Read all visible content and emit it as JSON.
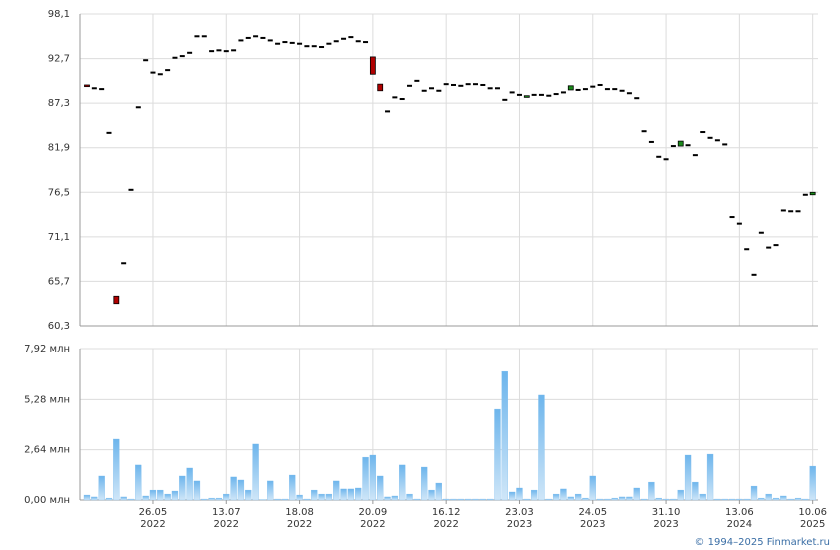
{
  "chart_data": [
    {
      "type": "candlestick",
      "ylim": [
        60.3,
        98.1
      ],
      "yticks": [
        {
          "value": 60.3,
          "label": "60,3"
        },
        {
          "value": 65.7,
          "label": "65,7"
        },
        {
          "value": 71.1,
          "label": "71,1"
        },
        {
          "value": 76.5,
          "label": "76,5"
        },
        {
          "value": 81.9,
          "label": "81,9"
        },
        {
          "value": 87.3,
          "label": "87,3"
        },
        {
          "value": 92.7,
          "label": "92,7"
        },
        {
          "value": 98.1,
          "label": "98,1"
        }
      ],
      "grid": true,
      "up_color": "#1a8a1a",
      "down_color": "#b00000",
      "flat_color": "#000000",
      "open": [
        89.5,
        89.1,
        89.0,
        83.7,
        63.9,
        67.9,
        76.8,
        86.8,
        92.5,
        91.0,
        90.8,
        91.3,
        92.8,
        93.0,
        93.4,
        95.4,
        95.4,
        93.6,
        93.7,
        93.6,
        93.7,
        94.9,
        95.2,
        95.4,
        95.2,
        94.9,
        94.5,
        94.7,
        94.6,
        94.5,
        94.2,
        94.2,
        94.1,
        94.5,
        94.8,
        95.1,
        95.3,
        94.8,
        94.7,
        92.9,
        89.6,
        86.3,
        88.0,
        87.8,
        89.4,
        90.0,
        88.8,
        89.1,
        88.8,
        89.6,
        89.5,
        89.4,
        89.6,
        89.6,
        89.5,
        89.1,
        89.1,
        87.7,
        88.6,
        88.3,
        88.0,
        88.3,
        88.3,
        88.2,
        88.4,
        88.6,
        88.9,
        88.9,
        89.0,
        89.3,
        89.5,
        89.0,
        89.0,
        88.8,
        88.5,
        87.9,
        83.9,
        82.6,
        80.8,
        80.5,
        82.1,
        82.1,
        82.2,
        81.0,
        83.8,
        83.1,
        82.8,
        82.3,
        73.5,
        72.7,
        69.6,
        66.5,
        71.6,
        69.8,
        70.1,
        74.3,
        74.2,
        74.2,
        76.2,
        76.2
      ],
      "close": [
        89.3,
        89.1,
        89.0,
        83.7,
        63.0,
        67.9,
        76.8,
        86.8,
        92.5,
        91.0,
        90.8,
        91.3,
        92.8,
        93.0,
        93.4,
        95.4,
        95.4,
        93.6,
        93.7,
        93.6,
        93.7,
        94.9,
        95.2,
        95.4,
        95.2,
        94.9,
        94.5,
        94.7,
        94.6,
        94.5,
        94.2,
        94.2,
        94.1,
        94.5,
        94.8,
        95.1,
        95.3,
        94.8,
        94.7,
        90.8,
        88.8,
        86.3,
        88.0,
        87.8,
        89.4,
        90.0,
        88.8,
        89.1,
        88.8,
        89.6,
        89.5,
        89.4,
        89.6,
        89.6,
        89.5,
        89.1,
        89.1,
        87.7,
        88.6,
        88.3,
        88.2,
        88.3,
        88.3,
        88.2,
        88.4,
        88.6,
        89.4,
        88.9,
        89.0,
        89.3,
        89.5,
        89.0,
        89.0,
        88.8,
        88.5,
        87.9,
        83.9,
        82.6,
        80.8,
        80.5,
        82.1,
        82.7,
        82.2,
        81.0,
        83.8,
        83.1,
        82.8,
        82.3,
        73.5,
        72.7,
        69.6,
        66.5,
        71.6,
        69.8,
        70.1,
        74.3,
        74.2,
        74.2,
        76.2,
        76.5
      ]
    },
    {
      "type": "bar",
      "ylim": [
        0,
        7.92
      ],
      "yticks": [
        {
          "value": 0,
          "label": "0,00 млн"
        },
        {
          "value": 2.64,
          "label": "2,64 млн"
        },
        {
          "value": 5.28,
          "label": "5,28 млн"
        },
        {
          "value": 7.92,
          "label": "7,92 млн"
        }
      ],
      "grid": true,
      "color": "#7dbdee",
      "categories": [
        null,
        null,
        null,
        null,
        null,
        null,
        null,
        null,
        null,
        "26.05\n2022",
        null,
        null,
        null,
        null,
        null,
        null,
        null,
        null,
        null,
        "13.07\n2022",
        null,
        null,
        null,
        null,
        null,
        null,
        null,
        null,
        null,
        "18.08\n2022",
        null,
        null,
        null,
        null,
        null,
        null,
        null,
        null,
        null,
        "20.09\n2022",
        null,
        null,
        null,
        null,
        null,
        null,
        null,
        null,
        null,
        "16.12\n2022",
        null,
        null,
        null,
        null,
        null,
        null,
        null,
        null,
        null,
        "23.03\n2023",
        null,
        null,
        null,
        null,
        null,
        null,
        null,
        null,
        null,
        "24.05\n2023",
        null,
        null,
        null,
        null,
        null,
        null,
        null,
        null,
        null,
        "31.10\n2023",
        null,
        null,
        null,
        null,
        null,
        null,
        null,
        null,
        null,
        "13.06\n2024",
        null,
        null,
        null,
        null,
        null,
        null,
        null,
        null,
        null,
        "10.06\n2025"
      ],
      "values": [
        0.26,
        0.16,
        1.26,
        0.1,
        3.2,
        0.16,
        0.05,
        1.84,
        0.21,
        0.52,
        0.52,
        0.31,
        0.47,
        1.26,
        1.68,
        1.0,
        0.05,
        0.1,
        0.1,
        0.31,
        1.21,
        1.05,
        0.52,
        2.94,
        0.02,
        1.0,
        0.05,
        0.05,
        1.31,
        0.26,
        0.05,
        0.52,
        0.31,
        0.31,
        1.0,
        0.58,
        0.58,
        0.63,
        2.25,
        2.36,
        1.26,
        0.16,
        0.21,
        1.84,
        0.31,
        0.05,
        1.73,
        0.52,
        0.89,
        0.05,
        0.05,
        0.05,
        0.05,
        0.05,
        0.05,
        0.05,
        4.77,
        6.76,
        0.42,
        0.63,
        0.05,
        0.52,
        5.51,
        0.05,
        0.31,
        0.58,
        0.16,
        0.31,
        0.1,
        1.26,
        0.05,
        0.05,
        0.1,
        0.16,
        0.16,
        0.63,
        0.05,
        0.94,
        0.1,
        0.05,
        0.05,
        0.52,
        2.36,
        0.94,
        0.31,
        2.41,
        0.05,
        0.05,
        0.05,
        0.05,
        0.05,
        0.73,
        0.1,
        0.31,
        0.1,
        0.21,
        0.05,
        0.1,
        0.05,
        1.78
      ]
    }
  ],
  "credit": "© 1994–2025 Finmarket.ru"
}
